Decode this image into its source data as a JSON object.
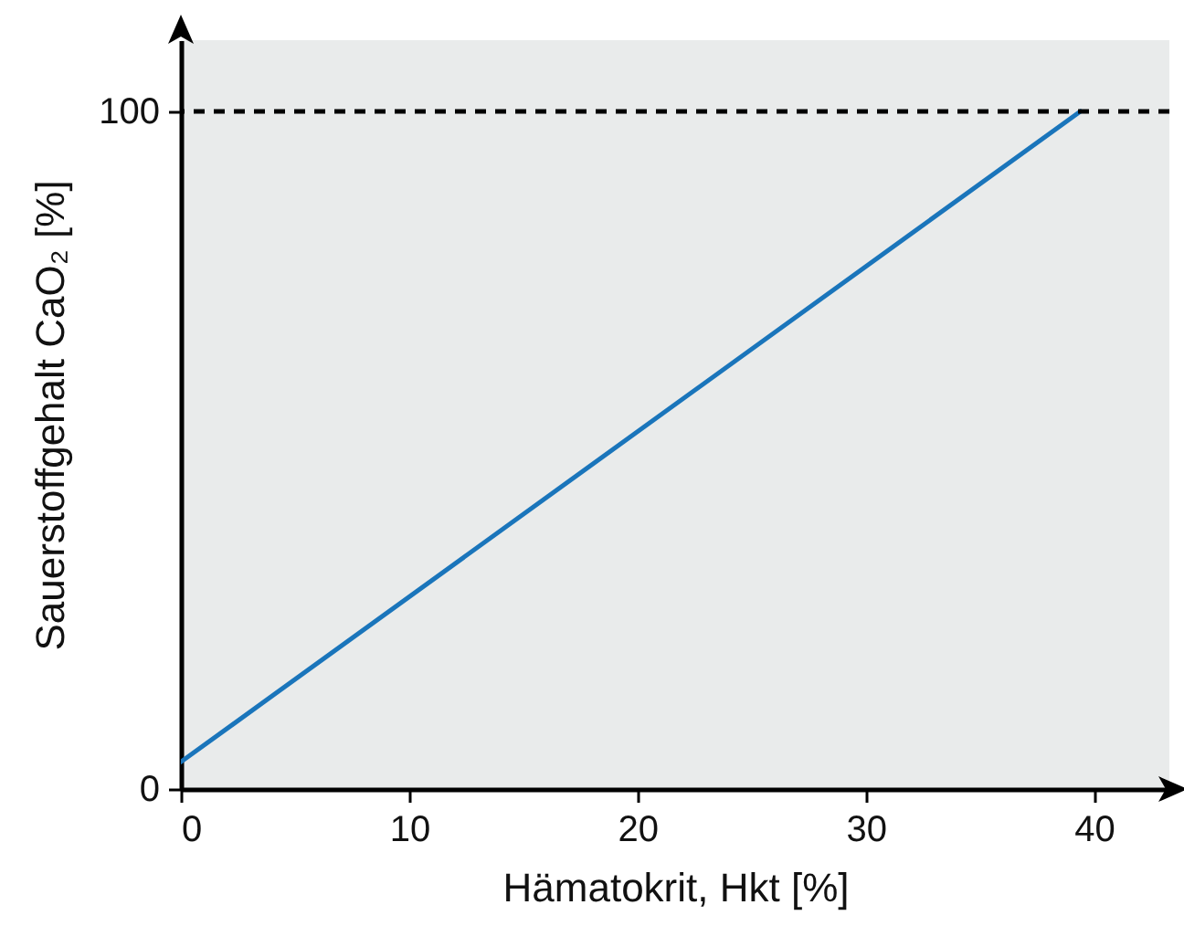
{
  "chart_data": {
    "type": "line",
    "xlabel": "Hämatokrit, Hkt [%]",
    "ylabel": "Sauerstoffgehalt CaO₂ [%]",
    "x": [
      0,
      39.4
    ],
    "series": [
      {
        "color": "#1a75bb",
        "values": [
          4,
          100
        ]
      }
    ],
    "xlim": [
      0,
      43.3
    ],
    "ylim": [
      0,
      110.5
    ],
    "xticks": [
      0,
      10,
      20,
      30,
      40
    ],
    "yticks": [
      0,
      100
    ],
    "ref_lines": [
      {
        "axis": "y",
        "value": 100,
        "color": "#000000",
        "line_style": "dashed"
      }
    ],
    "grid": false,
    "legend": false,
    "marker": "none",
    "line_style": "solid"
  }
}
